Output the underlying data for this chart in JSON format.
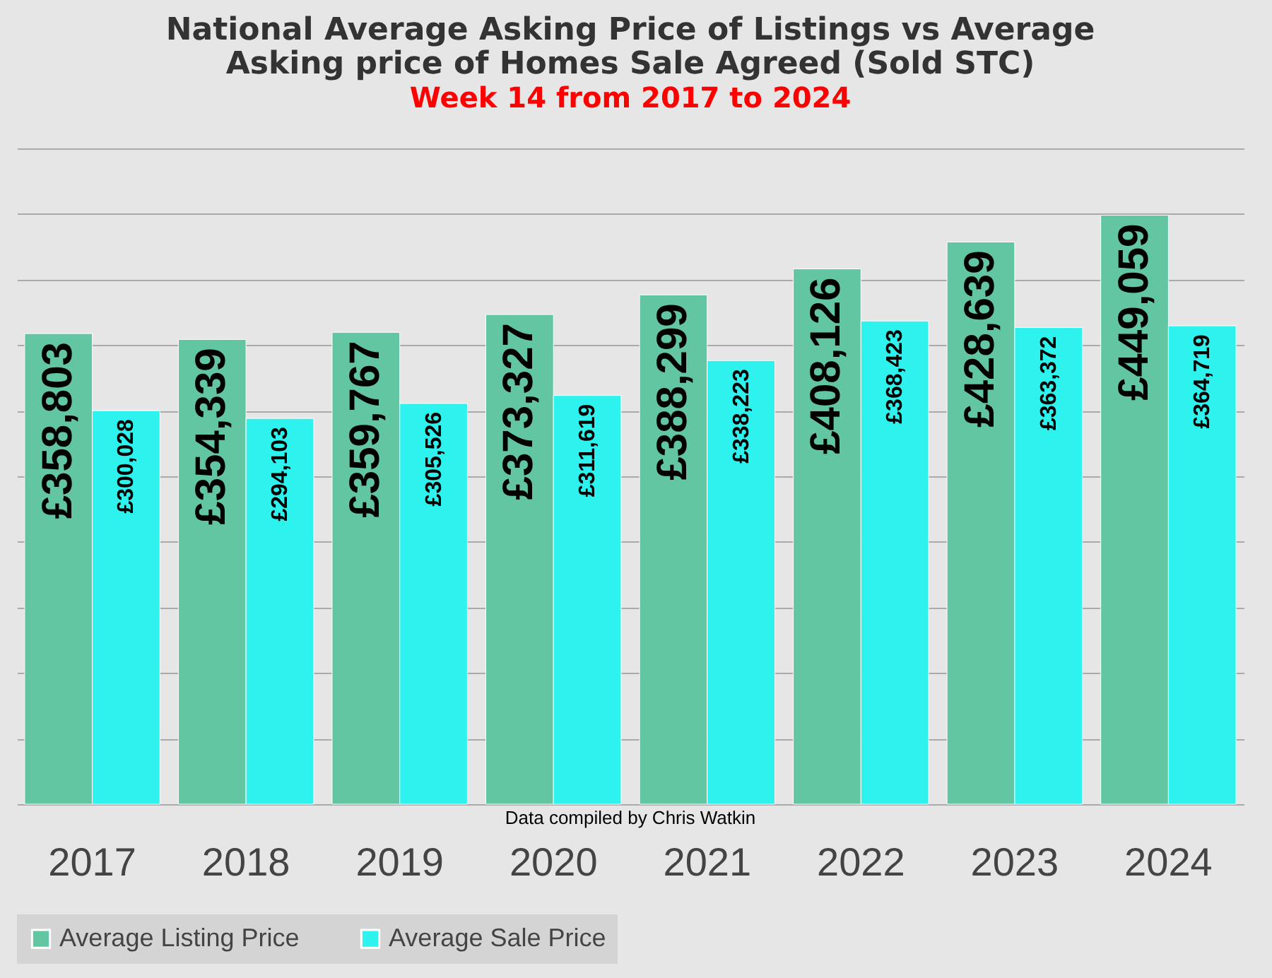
{
  "chart_data": {
    "type": "bar",
    "title": "National Average Asking Price of Listings vs Average Asking price of Homes Sale Agreed (Sold STC)",
    "subtitle": "Week 14 from 2017 to 2024",
    "categories": [
      "2017",
      "2018",
      "2019",
      "2020",
      "2021",
      "2022",
      "2023",
      "2024"
    ],
    "series": [
      {
        "name": "Average Listing Price",
        "color": "#62c6a2",
        "values": [
          358803,
          354339,
          359767,
          373327,
          388299,
          408126,
          428639,
          449059
        ],
        "value_labels": [
          "£358,803",
          "£354,339",
          "£359,767",
          "£373,327",
          "£388,299",
          "£408,126",
          "£428,639",
          "£449,059"
        ]
      },
      {
        "name": "Average Sale Price",
        "color": "#2ef2ee",
        "values": [
          300028,
          294103,
          305526,
          311619,
          338223,
          368423,
          363372,
          364719
        ],
        "value_labels": [
          "£300,028",
          "£294,103",
          "£305,526",
          "£311,619",
          "£338,223",
          "£368,423",
          "£363,372",
          "£364,719"
        ]
      }
    ],
    "ylim": [
      0,
      500000
    ],
    "yticks": [
      0,
      50000,
      100000,
      150000,
      200000,
      250000,
      300000,
      350000,
      400000,
      450000,
      500000
    ],
    "tick_labels": "x",
    "grid": "y",
    "legend": "bottom",
    "annotations": [
      "Data compiled by Chris Watkin"
    ]
  }
}
